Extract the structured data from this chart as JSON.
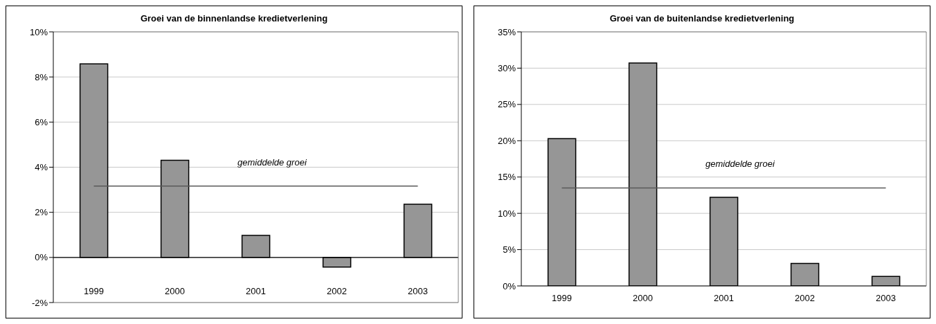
{
  "chart_data": [
    {
      "type": "bar",
      "title": "Groei van de binnenlandse kredietverlening",
      "categories": [
        "1999",
        "2000",
        "2001",
        "2002",
        "2003"
      ],
      "values": [
        8.58,
        4.31,
        0.98,
        -0.43,
        2.36
      ],
      "color": "#969696",
      "ylim": [
        -2,
        10
      ],
      "yticks": [
        {
          "value": -2,
          "label": "-2%"
        },
        {
          "value": 0,
          "label": "0%"
        },
        {
          "value": 2,
          "label": "2%"
        },
        {
          "value": 4,
          "label": "4%"
        },
        {
          "value": 6,
          "label": "6%"
        },
        {
          "value": 8,
          "label": "8%"
        },
        {
          "value": 10,
          "label": "10%"
        }
      ],
      "grid": "y",
      "ref_lines": [
        {
          "axis": "y",
          "value": 3.16,
          "label": "gemiddelde groei",
          "color": "#595959"
        }
      ]
    },
    {
      "type": "bar",
      "title": "Groei van de buitenlandse kredietverlening",
      "categories": [
        "1999",
        "2000",
        "2001",
        "2002",
        "2003"
      ],
      "values": [
        20.3,
        30.7,
        12.2,
        3.1,
        1.3
      ],
      "color": "#969696",
      "ylim": [
        0,
        35
      ],
      "yticks": [
        {
          "value": 0,
          "label": "0%"
        },
        {
          "value": 5,
          "label": "5%"
        },
        {
          "value": 10,
          "label": "10%"
        },
        {
          "value": 15,
          "label": "15%"
        },
        {
          "value": 20,
          "label": "20%"
        },
        {
          "value": 25,
          "label": "25%"
        },
        {
          "value": 30,
          "label": "30%"
        },
        {
          "value": 35,
          "label": "35%"
        }
      ],
      "grid": "y",
      "ref_lines": [
        {
          "axis": "y",
          "value": 13.5,
          "label": "gemiddelde groei",
          "color": "#595959"
        }
      ]
    }
  ]
}
